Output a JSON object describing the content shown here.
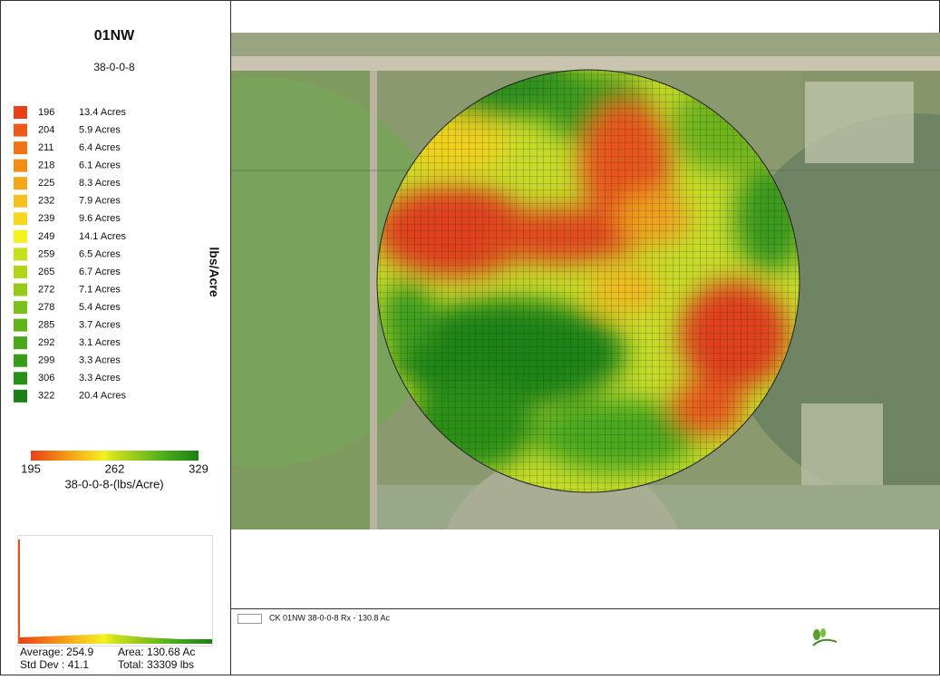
{
  "header": {
    "title": "01NW",
    "product": "38-0-0-8"
  },
  "legend": {
    "units": "lbs/Acre",
    "rows": [
      {
        "rate": "196",
        "acres": "13.4 Acres",
        "color": "#e8411a"
      },
      {
        "rate": "204",
        "acres": "5.9 Acres",
        "color": "#ec5a16"
      },
      {
        "rate": "211",
        "acres": "6.4 Acres",
        "color": "#ef7416"
      },
      {
        "rate": "218",
        "acres": "6.1 Acres",
        "color": "#f28e16"
      },
      {
        "rate": "225",
        "acres": "8.3 Acres",
        "color": "#f5a71a"
      },
      {
        "rate": "232",
        "acres": "7.9 Acres",
        "color": "#f7c11d"
      },
      {
        "rate": "239",
        "acres": "9.6 Acres",
        "color": "#f3d81f"
      },
      {
        "rate": "249",
        "acres": "14.1 Acres",
        "color": "#f5f020"
      },
      {
        "rate": "259",
        "acres": "6.5 Acres",
        "color": "#c7e01c"
      },
      {
        "rate": "265",
        "acres": "6.7 Acres",
        "color": "#b2d51c"
      },
      {
        "rate": "272",
        "acres": "7.1 Acres",
        "color": "#96c91c"
      },
      {
        "rate": "278",
        "acres": "5.4 Acres",
        "color": "#7cc01c"
      },
      {
        "rate": "285",
        "acres": "3.7 Acres",
        "color": "#5fb41c"
      },
      {
        "rate": "292",
        "acres": "3.1 Acres",
        "color": "#4aa81a"
      },
      {
        "rate": "299",
        "acres": "3.3 Acres",
        "color": "#379c18"
      },
      {
        "rate": "306",
        "acres": "3.3 Acres",
        "color": "#2a8f16"
      },
      {
        "rate": "322",
        "acres": "20.4 Acres",
        "color": "#1a7f14"
      }
    ]
  },
  "colorbar": {
    "ticks": [
      "195",
      "262",
      "329"
    ],
    "caption": "38-0-0-8-(lbs/Acre)"
  },
  "stats": {
    "average": "Average: 254.9",
    "area": "Area: 130.68 Ac",
    "std_dev": "Std Dev : 41.1",
    "total": "Total: 33309 lbs"
  },
  "footer": {
    "caption": "CK 01NW 38-0-0-8 Rx - 130.8 Ac"
  }
}
